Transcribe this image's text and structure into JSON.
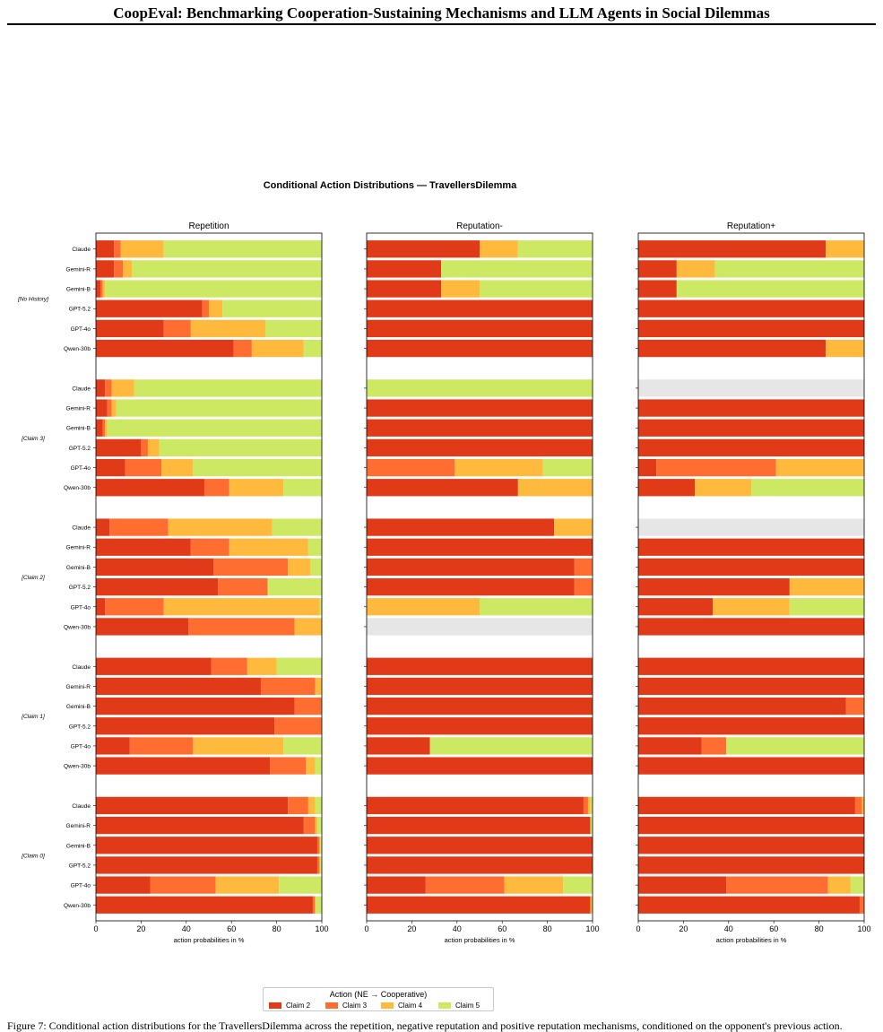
{
  "header": {
    "title": "CoopEval: Benchmarking Cooperation-Sustaining Mechanisms and LLM Agents in Social Dilemmas"
  },
  "caption": "Figure 7: Conditional action distributions for the TravellersDilemma across the repetition, negative reputation and positive reputation mechanisms, conditioned on the opponent's previous action.",
  "chart_data": {
    "type": "bar",
    "orientation": "horizontal-stacked",
    "title": "Conditional Action Distributions — TravellersDilemma",
    "xlabel": "action probabilities in %",
    "xlim": [
      0,
      100
    ],
    "xticks": [
      0,
      20,
      40,
      60,
      80,
      100
    ],
    "panels": [
      "Repetition",
      "Reputation-",
      "Reputation+"
    ],
    "groups": [
      "[No History]",
      "[Claim 3]",
      "[Claim 2]",
      "[Claim 1]",
      "[Claim 0]"
    ],
    "models": [
      "Claude",
      "Gemini-R",
      "Gemini-B",
      "GPT-5.2",
      "GPT-4o",
      "Qwen-30b"
    ],
    "series": [
      {
        "name": "Claim 2",
        "color": "#e13a18"
      },
      {
        "name": "Claim 3",
        "color": "#ff6e30"
      },
      {
        "name": "Claim 4",
        "color": "#ffb93d"
      },
      {
        "name": "Claim 5",
        "color": "#cde964"
      }
    ],
    "no_data_color": "#e6e6e6",
    "legend": {
      "title": "Action  (NE → Cooperative)",
      "position": "bottom-center"
    },
    "grid": false,
    "values": {
      "Repetition": [
        [
          [
            8,
            3,
            19,
            70
          ],
          [
            8,
            4,
            4,
            84
          ],
          [
            2,
            1,
            1,
            96
          ],
          [
            47,
            3,
            6,
            44
          ],
          [
            30,
            12,
            33,
            25
          ],
          [
            61,
            8,
            23,
            8
          ]
        ],
        [
          [
            4,
            3,
            10,
            83
          ],
          [
            5,
            2,
            2,
            91
          ],
          [
            3,
            1,
            1,
            95
          ],
          [
            20,
            3,
            5,
            72
          ],
          [
            13,
            16,
            14,
            57
          ],
          [
            48,
            11,
            24,
            17
          ]
        ],
        [
          [
            6,
            26,
            46,
            22
          ],
          [
            42,
            17,
            35,
            6
          ],
          [
            52,
            33,
            10,
            5
          ],
          [
            54,
            22,
            0,
            24
          ],
          [
            4,
            26,
            69,
            1
          ],
          [
            41,
            47,
            12,
            0
          ]
        ],
        [
          [
            51,
            16,
            13,
            20
          ],
          [
            73,
            24,
            3,
            0
          ],
          [
            88,
            12,
            0,
            0
          ],
          [
            79,
            21,
            0,
            0
          ],
          [
            15,
            28,
            40,
            17
          ],
          [
            77,
            16,
            4,
            3
          ]
        ],
        [
          [
            85,
            9,
            3,
            3
          ],
          [
            92,
            5,
            1,
            2
          ],
          [
            98,
            1,
            0,
            1
          ],
          [
            98,
            1,
            0,
            1
          ],
          [
            24,
            29,
            28,
            19
          ],
          [
            96,
            1,
            0,
            3
          ]
        ]
      ],
      "Reputation-": [
        [
          [
            50,
            0,
            17,
            33
          ],
          [
            33,
            0,
            0,
            67
          ],
          [
            33,
            0,
            17,
            50
          ],
          [
            100,
            0,
            0,
            0
          ],
          [
            100,
            0,
            0,
            0
          ],
          [
            100,
            0,
            0,
            0
          ]
        ],
        [
          [
            0,
            0,
            0,
            100
          ],
          [
            100,
            0,
            0,
            0
          ],
          [
            100,
            0,
            0,
            0
          ],
          [
            100,
            0,
            0,
            0
          ],
          [
            0,
            39,
            39,
            22
          ],
          [
            67,
            0,
            33,
            0
          ]
        ],
        [
          [
            83,
            0,
            17,
            0
          ],
          [
            100,
            0,
            0,
            0
          ],
          [
            92,
            8,
            0,
            0
          ],
          [
            92,
            8,
            0,
            0
          ],
          [
            0,
            0,
            50,
            50
          ],
          null
        ],
        [
          [
            100,
            0,
            0,
            0
          ],
          [
            100,
            0,
            0,
            0
          ],
          [
            100,
            0,
            0,
            0
          ],
          [
            100,
            0,
            0,
            0
          ],
          [
            28,
            0,
            0,
            72
          ],
          [
            100,
            0,
            0,
            0
          ]
        ],
        [
          [
            96,
            2,
            1,
            1
          ],
          [
            99,
            0,
            0,
            1
          ],
          [
            100,
            0,
            0,
            0
          ],
          [
            100,
            0,
            0,
            0
          ],
          [
            26,
            35,
            26,
            13
          ],
          [
            99,
            0,
            1,
            0
          ]
        ]
      ],
      "Reputation+": [
        [
          [
            83,
            0,
            17,
            0
          ],
          [
            17,
            0,
            17,
            66
          ],
          [
            17,
            0,
            0,
            83
          ],
          [
            100,
            0,
            0,
            0
          ],
          [
            100,
            0,
            0,
            0
          ],
          [
            83,
            0,
            17,
            0
          ]
        ],
        [
          null,
          [
            100,
            0,
            0,
            0
          ],
          [
            100,
            0,
            0,
            0
          ],
          [
            100,
            0,
            0,
            0
          ],
          [
            8,
            53,
            39,
            0
          ],
          [
            25,
            0,
            25,
            50
          ]
        ],
        [
          null,
          [
            100,
            0,
            0,
            0
          ],
          [
            100,
            0,
            0,
            0
          ],
          [
            67,
            0,
            33,
            0
          ],
          [
            33,
            0,
            34,
            33
          ],
          [
            100,
            0,
            0,
            0
          ]
        ],
        [
          [
            100,
            0,
            0,
            0
          ],
          [
            100,
            0,
            0,
            0
          ],
          [
            92,
            8,
            0,
            0
          ],
          [
            100,
            0,
            0,
            0
          ],
          [
            28,
            11,
            0,
            61
          ],
          [
            100,
            0,
            0,
            0
          ]
        ],
        [
          [
            96,
            3,
            1,
            0
          ],
          [
            100,
            0,
            0,
            0
          ],
          [
            100,
            0,
            0,
            0
          ],
          [
            100,
            0,
            0,
            0
          ],
          [
            39,
            45,
            10,
            6
          ],
          [
            98,
            2,
            0,
            0
          ]
        ]
      ]
    }
  }
}
